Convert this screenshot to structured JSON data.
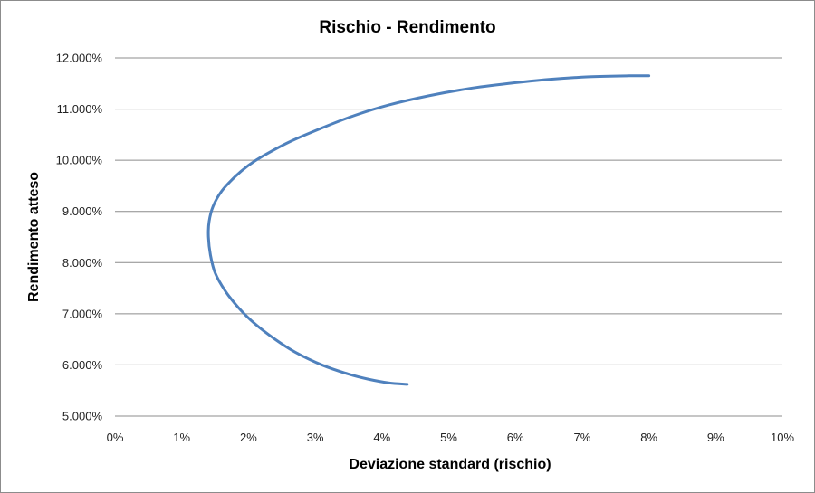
{
  "chart_data": {
    "type": "line",
    "title": "Rischio - Rendimento",
    "xlabel": "Deviazione standard (rischio)",
    "ylabel": "Rendimento atteso",
    "xlim": [
      0,
      0.1
    ],
    "ylim": [
      0.05,
      0.12
    ],
    "x_ticks": [
      "0%",
      "1%",
      "2%",
      "3%",
      "4%",
      "5%",
      "6%",
      "7%",
      "8%",
      "9%",
      "10%"
    ],
    "y_ticks": [
      "5.000%",
      "6.000%",
      "7.000%",
      "8.000%",
      "9.000%",
      "10.000%",
      "11.000%",
      "12.000%"
    ],
    "grid": "horizontal",
    "legend": "none",
    "line_color": "#4f81bd",
    "series": [
      {
        "x": [
          0.0438,
          0.041,
          0.038,
          0.035,
          0.031,
          0.027,
          0.024,
          0.021,
          0.0185,
          0.0165,
          0.015,
          0.0143,
          0.014,
          0.0141,
          0.0147,
          0.016,
          0.018,
          0.02,
          0.022,
          0.026,
          0.031,
          0.036,
          0.041,
          0.047,
          0.053,
          0.059,
          0.065,
          0.071,
          0.077,
          0.08
        ],
        "y": [
          0.0562,
          0.0565,
          0.0572,
          0.0582,
          0.06,
          0.0625,
          0.065,
          0.068,
          0.0712,
          0.0745,
          0.078,
          0.0815,
          0.085,
          0.088,
          0.091,
          0.094,
          0.0968,
          0.099,
          0.1007,
          0.1035,
          0.1063,
          0.1088,
          0.1108,
          0.1126,
          0.114,
          0.115,
          0.1158,
          0.1163,
          0.1165,
          0.1165
        ]
      }
    ]
  }
}
